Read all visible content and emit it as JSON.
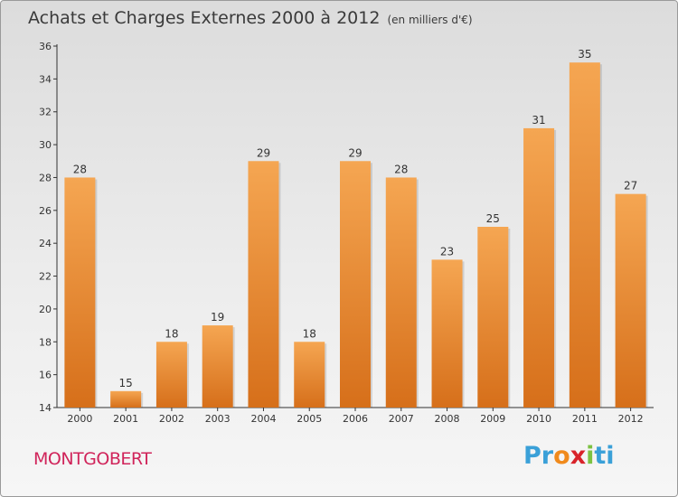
{
  "header": {
    "title": "Achats et Charges Externes 2000 à 2012",
    "unit": "(en milliers d'€)"
  },
  "footer": {
    "commune": "MONTGOBERT",
    "logo_text": "Proxiti",
    "logo_letters": [
      "P",
      "r",
      "o",
      "x",
      "i",
      "t",
      "i"
    ],
    "logo_colors": [
      "#3aa0d8",
      "#3aa0d8",
      "#f08a1c",
      "#d8232a",
      "#7cc242",
      "#3aa0d8",
      "#3aa0d8"
    ]
  },
  "chart_data": {
    "type": "bar",
    "categories": [
      "2000",
      "2001",
      "2002",
      "2003",
      "2004",
      "2005",
      "2006",
      "2007",
      "2008",
      "2009",
      "2010",
      "2011",
      "2012"
    ],
    "values": [
      28,
      15,
      18,
      19,
      29,
      18,
      29,
      28,
      23,
      25,
      31,
      35,
      27
    ],
    "ylim": [
      14,
      36
    ],
    "yticks": [
      14,
      16,
      18,
      20,
      22,
      24,
      26,
      28,
      30,
      32,
      34,
      36
    ],
    "grid": false,
    "colors": {
      "bar_top": "#f5a652",
      "bar_bottom": "#d66f1a",
      "axis": "#333333"
    }
  }
}
